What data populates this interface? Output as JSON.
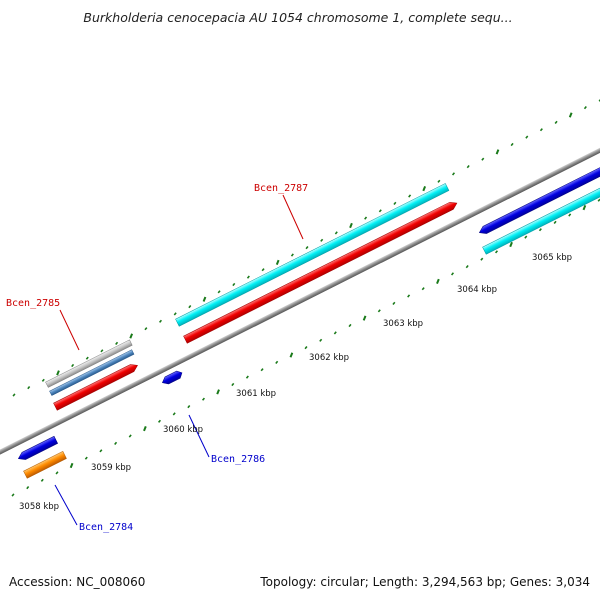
{
  "title": "Burkholderia cenocepacia AU 1054 chromosome 1, complete sequ...",
  "footer": {
    "accession": "Accession: NC_008060",
    "summary": "Topology: circular; Length: 3,294,563 bp; Genes: 3,034"
  },
  "colors": {
    "backbone": "#8c8c8c",
    "tick": "#1a7a1a",
    "label_red": "#cc0000",
    "label_blue": "#0000cc",
    "cyan": "#00e8ee",
    "red": "#ee0000",
    "blue": "#0000dd",
    "orange": "#ff8c00",
    "grey": "#b8b8b8",
    "steelblue": "#4f88c0"
  },
  "scale_labels": [
    "3058 kbp",
    "3059 kbp",
    "3060 kbp",
    "3061 kbp",
    "3062 kbp",
    "3063 kbp",
    "3064 kbp",
    "3065 kbp"
  ],
  "gene_labels": [
    "Bcen_2787",
    "Bcen_2785",
    "Bcen_2786",
    "Bcen_2784"
  ]
}
